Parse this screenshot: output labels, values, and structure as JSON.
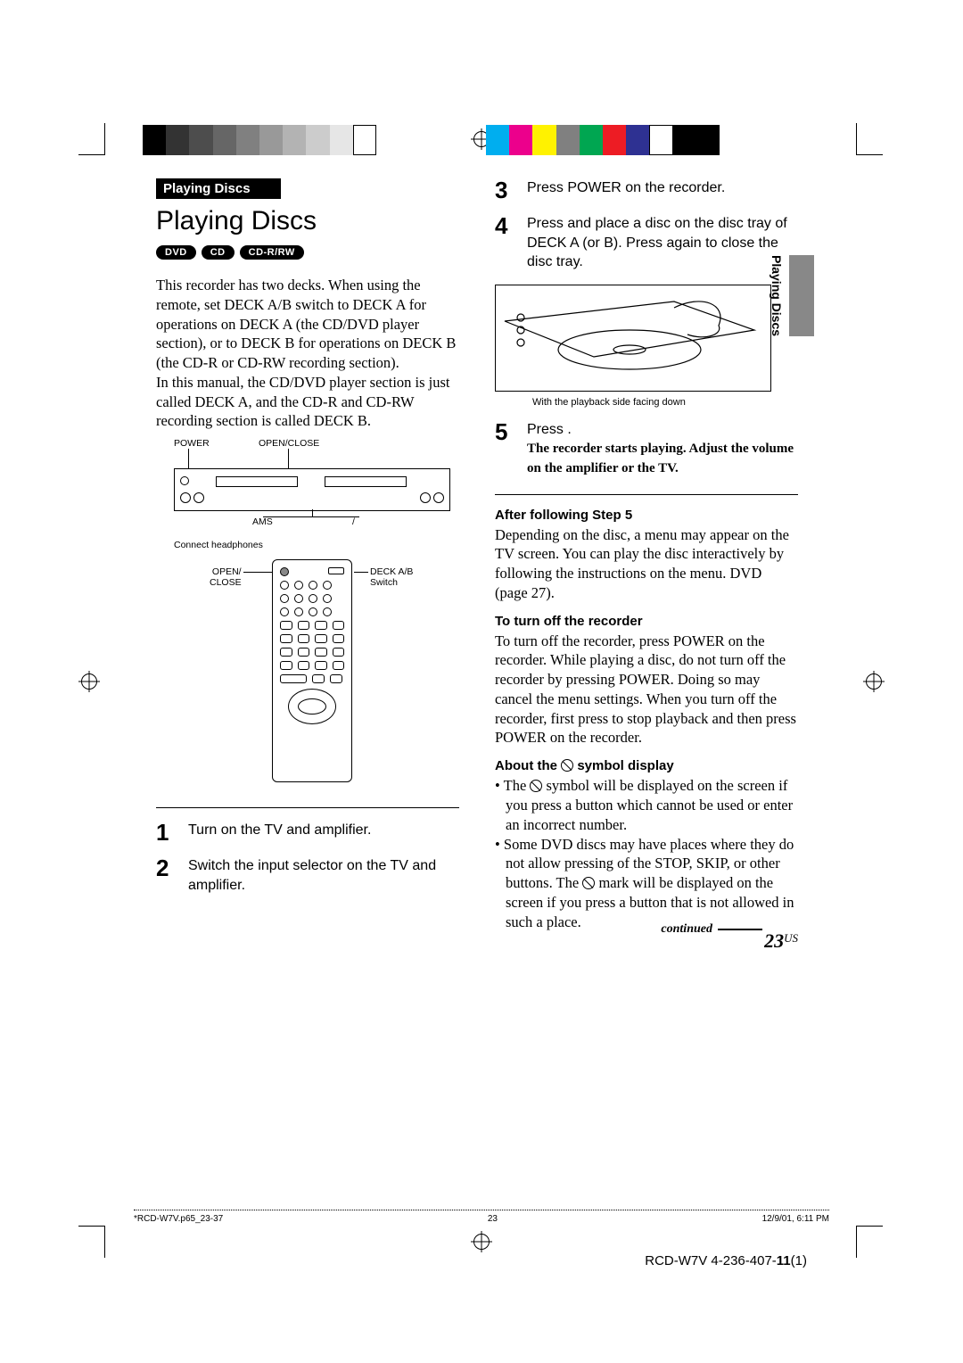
{
  "colorbar_left": [
    "#000000",
    "#333333",
    "#4d4d4d",
    "#666666",
    "#808080",
    "#999999",
    "#b3b3b3",
    "#cccccc",
    "#e6e6e6",
    "#ffffff"
  ],
  "colorbar_right": [
    "#00aeef",
    "#ec008c",
    "#fff200",
    "#808080",
    "#00a651",
    "#ed1c24",
    "#2e3192",
    "#ffffff",
    "#000000",
    "#000000"
  ],
  "section_header": "Playing Discs",
  "title": "Playing Discs",
  "badges": [
    "DVD",
    "CD",
    "CD-R/RW"
  ],
  "intro1": "This recorder has two decks. When using the remote, set DECK A/B switch to DECK A for operations on DECK A (the CD/DVD player section), or to DECK B for operations on DECK B (the CD-R or CD-RW recording section).",
  "intro2": "In this manual, the CD/DVD player section is just called DECK A, and the CD-R and CD-RW recording section is called DECK B.",
  "labels": {
    "power": "POWER",
    "open_close": "OPEN/CLOSE",
    "ams": "AMS",
    "slash": "/",
    "connect": "Connect headphones",
    "remote_open": "OPEN/\nCLOSE",
    "remote_deck": "DECK A/B\nSwitch"
  },
  "steps": {
    "1": "Turn on the TV and amplifier.",
    "2": "Switch the input selector on the TV and amplifier.",
    "3": "Press POWER on the recorder.",
    "4": "Press     and place a disc on the disc tray of DECK A (or B). Press     again to close the disc tray.",
    "5": "Press     ."
  },
  "insert_caption": "With the playback side facing down",
  "step5_note": "The recorder starts playing. Adjust the volume on the amplifier or the TV.",
  "after_head": "After following Step 5",
  "after_body": "Depending on the disc, a menu may appear on the TV screen. You can play the disc interactively by following the instructions on the menu. DVD (page 27).",
  "turnoff_head": "To turn off the recorder",
  "turnoff_body": "To turn off the recorder, press POWER on the recorder. While playing a disc, do not turn off the recorder by pressing POWER. Doing so may cancel the menu settings. When you turn off the recorder, first press     to stop playback and then press POWER on the recorder.",
  "about_head_pre": "About the ",
  "about_head_post": " symbol display",
  "about_b1a": "The ",
  "about_b1b": " symbol will be displayed on the screen if you press a button which cannot be used or enter an incorrect number.",
  "about_b2a": "Some DVD discs may have places where they do not allow pressing of the STOP, SKIP, or other buttons. The ",
  "about_b2b": " mark will be displayed on the screen if you press a button  that is not allowed in such a place.",
  "tab": "Playing Discs",
  "continued": "continued",
  "page_num": "23",
  "page_sup": "US",
  "footer": {
    "file": "*RCD-W7V.p65_23-37",
    "pg": "23",
    "ts": "12/9/01, 6:11 PM"
  },
  "model": "RCD-W7V 4-236-407-",
  "model_bold": "11",
  "model_tail": "(1)"
}
